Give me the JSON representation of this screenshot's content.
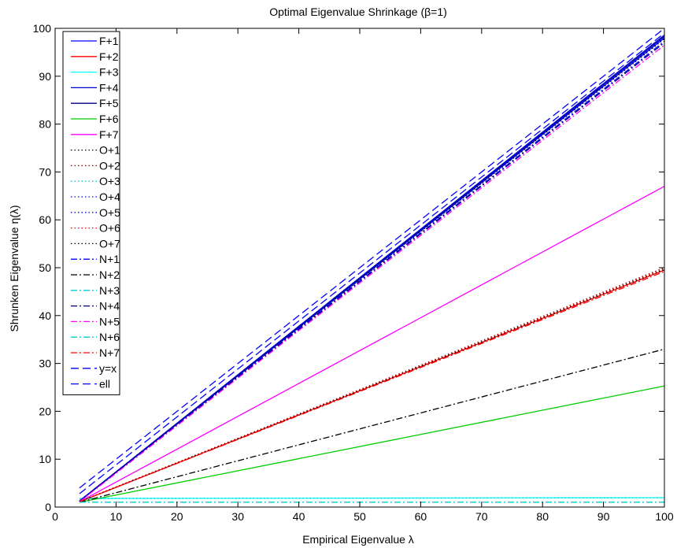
{
  "chart_data": {
    "type": "line",
    "title": "Optimal Eigenvalue Shrinkage (β=1)",
    "xlabel": "Empirical Eigenvalue λ",
    "ylabel": "Shrunken Eigenvalue η(λ)",
    "xlim": [
      0,
      100
    ],
    "ylim": [
      0,
      100
    ],
    "xticks": [
      0,
      10,
      20,
      30,
      40,
      50,
      60,
      70,
      80,
      90,
      100
    ],
    "yticks": [
      0,
      10,
      20,
      30,
      40,
      50,
      60,
      70,
      80,
      90,
      100
    ],
    "grid": false,
    "legend_position": "top-left",
    "series": [
      {
        "name": "F+1",
        "color": "#0000ff",
        "dash": "solid",
        "x": [
          4,
          100
        ],
        "y": [
          1.2,
          98
        ]
      },
      {
        "name": "F+2",
        "color": "#ff0000",
        "dash": "solid",
        "x": [
          4,
          100
        ],
        "y": [
          1.1,
          49.5
        ]
      },
      {
        "name": "F+3",
        "color": "#00ffff",
        "dash": "solid",
        "x": [
          4,
          100
        ],
        "y": [
          1.8,
          1.95
        ]
      },
      {
        "name": "F+4",
        "color": "#0000cc",
        "dash": "solid",
        "x": [
          4,
          100
        ],
        "y": [
          1.3,
          98.6
        ]
      },
      {
        "name": "F+5",
        "color": "#000080",
        "dash": "solid",
        "x": [
          4,
          100
        ],
        "y": [
          1.25,
          98.3
        ]
      },
      {
        "name": "F+6",
        "color": "#00cc00",
        "dash": "solid",
        "x": [
          4,
          100
        ],
        "y": [
          1.0,
          25.3
        ]
      },
      {
        "name": "F+7",
        "color": "#ff00ff",
        "dash": "solid",
        "x": [
          4,
          100
        ],
        "y": [
          1.1,
          67
        ]
      },
      {
        "name": "O+1",
        "color": "#000000",
        "dash": "dot",
        "x": [
          4,
          100
        ],
        "y": [
          1.2,
          97.8
        ]
      },
      {
        "name": "O+2",
        "color": "#800000",
        "dash": "dot",
        "x": [
          4,
          100
        ],
        "y": [
          1.15,
          50
        ]
      },
      {
        "name": "O+3",
        "color": "#00cccc",
        "dash": "dot",
        "x": [
          4,
          100
        ],
        "y": [
          1.8,
          1.95
        ]
      },
      {
        "name": "O+4",
        "color": "#0000ff",
        "dash": "dot",
        "x": [
          4,
          100
        ],
        "y": [
          1.3,
          98.4
        ]
      },
      {
        "name": "O+5",
        "color": "#0000ff",
        "dash": "dot",
        "x": [
          4,
          100
        ],
        "y": [
          1.25,
          98.2
        ]
      },
      {
        "name": "O+6",
        "color": "#ff0000",
        "dash": "dot",
        "x": [
          4,
          100
        ],
        "y": [
          1.15,
          49.8
        ]
      },
      {
        "name": "O+7",
        "color": "#000000",
        "dash": "dot",
        "x": [
          4,
          100
        ],
        "y": [
          1.1,
          49.6
        ]
      },
      {
        "name": "N+1",
        "color": "#0000ff",
        "dash": "dashdot",
        "x": [
          4,
          100
        ],
        "y": [
          1.2,
          97.3
        ]
      },
      {
        "name": "N+2",
        "color": "#000000",
        "dash": "dashdot",
        "x": [
          4,
          100
        ],
        "y": [
          1.0,
          33
        ]
      },
      {
        "name": "N+3",
        "color": "#00cccc",
        "dash": "dashdot",
        "x": [
          4,
          100
        ],
        "y": [
          1.0,
          1.0
        ]
      },
      {
        "name": "N+4",
        "color": "#000080",
        "dash": "dashdot",
        "x": [
          4,
          100
        ],
        "y": [
          1.2,
          97
        ]
      },
      {
        "name": "N+5",
        "color": "#ff00ff",
        "dash": "dashdot",
        "x": [
          4,
          100
        ],
        "y": [
          1.1,
          96.5
        ]
      },
      {
        "name": "N+6",
        "color": "#00cccc",
        "dash": "dashdot",
        "x": [
          4,
          100
        ],
        "y": [
          1.0,
          1.0
        ]
      },
      {
        "name": "N+7",
        "color": "#ff0000",
        "dash": "dashdot",
        "x": [
          4,
          100
        ],
        "y": [
          1.1,
          49.2
        ]
      },
      {
        "name": "y=x",
        "color": "#0000ff",
        "dash": "dash",
        "x": [
          4,
          100
        ],
        "y": [
          4,
          100
        ]
      },
      {
        "name": "ell",
        "color": "#0000ff",
        "dash": "dash",
        "x": [
          4,
          100
        ],
        "y": [
          2.8,
          99
        ]
      }
    ]
  }
}
